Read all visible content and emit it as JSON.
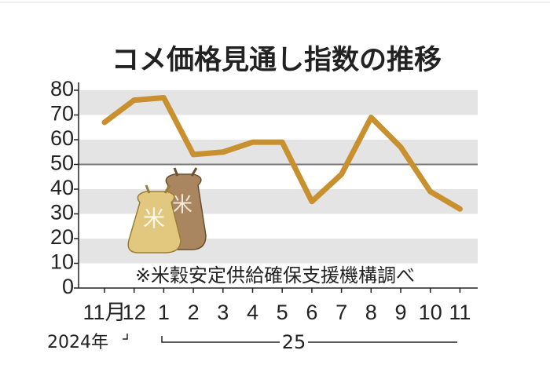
{
  "chart_data": {
    "type": "line",
    "title": "コメ価格見通し指数の推移",
    "note": "※米穀安定供給確保支援機構調べ",
    "categories": [
      "11月",
      "12",
      "1",
      "2",
      "3",
      "4",
      "5",
      "6",
      "7",
      "8",
      "9",
      "10",
      "11"
    ],
    "values": [
      67,
      76,
      77,
      54,
      55,
      59,
      59,
      35,
      46,
      69,
      57,
      39,
      32
    ],
    "color": "#c8902e",
    "year_labels": [
      "2024年",
      "25"
    ],
    "ylim": [
      0,
      80
    ],
    "yticks": [
      0,
      10,
      20,
      30,
      40,
      50,
      60,
      70,
      80
    ],
    "grid_bands": true,
    "reference_line": 50
  }
}
